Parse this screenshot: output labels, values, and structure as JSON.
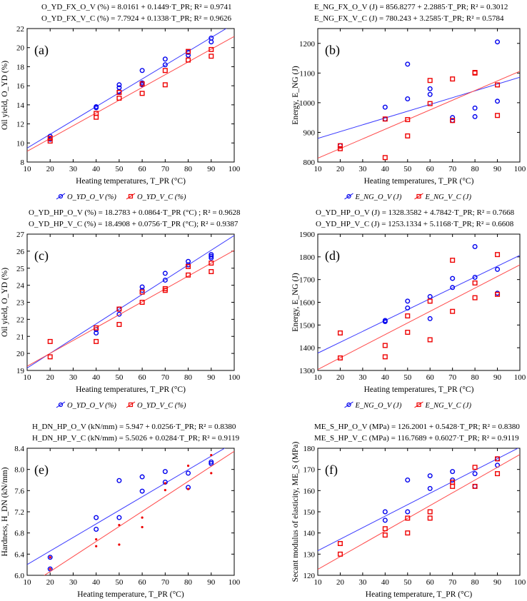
{
  "colors": {
    "blue": "#0000ee",
    "red": "#ee0000",
    "fit_blue": "#3a3aff",
    "fit_red": "#ff4a4a",
    "axis": "#000000"
  },
  "chart_data": [
    {
      "type": "scatter",
      "panel": "(a)",
      "eq1": "O_YD_FX_O_V (%) = 8.0161 + 0.1449·T_PR; R² = 0.9741",
      "eq2": "O_YD_FX_V_C (%) = 7.7924 + 0.1338·T_PR; R² = 0.9626",
      "xlabel": "Heating temperatures, T_PR (°C)",
      "ylabel": "Oil yield, O_YD (%)",
      "xlim": [
        10,
        100
      ],
      "ylim": [
        8,
        22
      ],
      "xticks": [
        10,
        20,
        30,
        40,
        50,
        60,
        70,
        80,
        90,
        100
      ],
      "yticks": [
        8,
        10,
        12,
        14,
        16,
        18,
        20,
        22
      ],
      "ytick_fmt": 0,
      "legend": [
        "O_YD_O_V (%)",
        "O_YD_V_C (%)"
      ],
      "series": [
        {
          "name": "O_V",
          "marker": "circle",
          "fit": [
            8.0161,
            0.1449
          ],
          "points": [
            [
              20,
              10.7
            ],
            [
              20,
              10.4
            ],
            [
              40,
              13.7
            ],
            [
              40,
              13.8
            ],
            [
              50,
              15.4
            ],
            [
              50,
              15.8
            ],
            [
              50,
              16.1
            ],
            [
              60,
              16.1
            ],
            [
              60,
              16.3
            ],
            [
              60,
              17.6
            ],
            [
              70,
              18.2
            ],
            [
              70,
              18.8
            ],
            [
              80,
              19.2
            ],
            [
              80,
              19.5
            ],
            [
              90,
              20.6
            ],
            [
              90,
              21.0
            ]
          ]
        },
        {
          "name": "V_C",
          "marker": "square",
          "fit": [
            7.7924,
            0.1338
          ],
          "points": [
            [
              20,
              10.2
            ],
            [
              20,
              10.5
            ],
            [
              40,
              12.7
            ],
            [
              40,
              13.1
            ],
            [
              50,
              14.7
            ],
            [
              50,
              15.3
            ],
            [
              60,
              15.2
            ],
            [
              60,
              16.2
            ],
            [
              70,
              16.1
            ],
            [
              70,
              17.6
            ],
            [
              80,
              18.7
            ],
            [
              80,
              19.6
            ],
            [
              90,
              19.1
            ],
            [
              90,
              19.8
            ]
          ]
        }
      ]
    },
    {
      "type": "scatter",
      "panel": "(b)",
      "eq1": "E_NG_FX_O_V (J) = 856.8277 + 2.2885·T_PR; R² = 0.3012",
      "eq2": "E_NG_FX_V_C (J) = 780.243 + 3.2585·T_PR; R² = 0.5784",
      "xlabel": "Heating temperatures, T_PR (°C)",
      "ylabel": "Energy, E_NG (J)",
      "xlim": [
        10,
        100
      ],
      "ylim": [
        800,
        1250
      ],
      "xticks": [
        10,
        20,
        30,
        40,
        50,
        60,
        70,
        80,
        90,
        100
      ],
      "yticks": [
        800,
        900,
        1000,
        1100,
        1200
      ],
      "ytick_fmt": 0,
      "legend": [
        "E_NG_O_V (J)",
        "E_NG_V_C (J)"
      ],
      "series": [
        {
          "name": "O_V",
          "marker": "circle",
          "fit": [
            856.8277,
            2.2885
          ],
          "points": [
            [
              20,
              855
            ],
            [
              40,
              945
            ],
            [
              40,
              985
            ],
            [
              50,
              1013
            ],
            [
              50,
              1130
            ],
            [
              60,
              1028
            ],
            [
              60,
              1047
            ],
            [
              70,
              940
            ],
            [
              70,
              950
            ],
            [
              80,
              953
            ],
            [
              80,
              982
            ],
            [
              90,
              1005
            ],
            [
              90,
              1205
            ]
          ]
        },
        {
          "name": "V_C",
          "marker": "square",
          "fit": [
            780.243,
            3.2585
          ],
          "points": [
            [
              20,
              845
            ],
            [
              20,
              855
            ],
            [
              40,
              815
            ],
            [
              40,
              945
            ],
            [
              50,
              888
            ],
            [
              50,
              943
            ],
            [
              60,
              997
            ],
            [
              60,
              1075
            ],
            [
              70,
              940
            ],
            [
              70,
              1080
            ],
            [
              80,
              1100
            ],
            [
              80,
              1102
            ],
            [
              90,
              957
            ],
            [
              90,
              1060
            ]
          ]
        }
      ]
    },
    {
      "type": "scatter",
      "panel": "(c)",
      "eq1": "O_YD_HP_O_V (%) = 18.2783 + 0.0864·T_PR (°C) ; R² = 0.9628",
      "eq2": "O_YD_HP_V_C (%) = 18.4908 + 0.0756·T_PR (°C); R² = 0.9387",
      "xlabel": "Heating temperatures, T_PR (°C)",
      "ylabel": "Oil yield, O_YD (%)",
      "xlim": [
        10,
        100
      ],
      "ylim": [
        19,
        27
      ],
      "xticks": [
        10,
        20,
        30,
        40,
        50,
        60,
        70,
        80,
        90,
        100
      ],
      "yticks": [
        19,
        20,
        21,
        22,
        23,
        24,
        25,
        26,
        27
      ],
      "ytick_fmt": 0,
      "legend": [
        "O_YD_O_V (%)",
        "O_YD_V_C (%)"
      ],
      "series": [
        {
          "name": "O_V",
          "marker": "circle",
          "fit": [
            18.2783,
            0.0864
          ],
          "points": [
            [
              40,
              21.2
            ],
            [
              40,
              21.4
            ],
            [
              50,
              22.3
            ],
            [
              50,
              22.6
            ],
            [
              60,
              23.7
            ],
            [
              60,
              23.9
            ],
            [
              70,
              24.3
            ],
            [
              70,
              24.7
            ],
            [
              80,
              25.2
            ],
            [
              80,
              25.4
            ],
            [
              90,
              25.6
            ],
            [
              90,
              25.7
            ],
            [
              90,
              25.8
            ]
          ]
        },
        {
          "name": "V_C",
          "marker": "square",
          "fit": [
            18.4908,
            0.0756
          ],
          "points": [
            [
              20,
              19.8
            ],
            [
              20,
              20.7
            ],
            [
              40,
              20.7
            ],
            [
              40,
              21.5
            ],
            [
              50,
              21.7
            ],
            [
              50,
              22.6
            ],
            [
              60,
              23.0
            ],
            [
              60,
              23.6
            ],
            [
              70,
              23.7
            ],
            [
              70,
              23.8
            ],
            [
              80,
              24.6
            ],
            [
              80,
              25.1
            ],
            [
              90,
              24.8
            ],
            [
              90,
              25.3
            ]
          ]
        }
      ]
    },
    {
      "type": "scatter",
      "panel": "(d)",
      "eq1": "O_YD_HP_O_V (J) = 1328.3582 + 4.7842·T_PR; R² = 0.7668",
      "eq2": "O_YD_HP_V_C (J) = 1253.1334 + 5.1168·T_PR; R² = 0.6608",
      "xlabel": "Heating temperatures, T_PR (°C)",
      "ylabel": "Energy, E_NG (J)",
      "xlim": [
        10,
        100
      ],
      "ylim": [
        1300,
        1900
      ],
      "xticks": [
        10,
        20,
        30,
        40,
        50,
        60,
        70,
        80,
        90,
        100
      ],
      "yticks": [
        1300,
        1400,
        1500,
        1600,
        1700,
        1800,
        1900
      ],
      "ytick_fmt": 0,
      "legend": [
        "E_NG_O_V (J)",
        "E_NG_V_C (J)"
      ],
      "series": [
        {
          "name": "O_V",
          "marker": "circle",
          "fit": [
            1328.3582,
            4.7842
          ],
          "points": [
            [
              40,
              1515
            ],
            [
              40,
              1520
            ],
            [
              50,
              1575
            ],
            [
              50,
              1605
            ],
            [
              60,
              1528
            ],
            [
              60,
              1625
            ],
            [
              70,
              1665
            ],
            [
              70,
              1705
            ],
            [
              80,
              1710
            ],
            [
              80,
              1845
            ],
            [
              90,
              1640
            ],
            [
              90,
              1745
            ]
          ]
        },
        {
          "name": "V_C",
          "marker": "square",
          "fit": [
            1253.1334,
            5.1168
          ],
          "points": [
            [
              20,
              1355
            ],
            [
              20,
              1465
            ],
            [
              40,
              1360
            ],
            [
              40,
              1410
            ],
            [
              50,
              1468
            ],
            [
              50,
              1540
            ],
            [
              60,
              1435
            ],
            [
              60,
              1605
            ],
            [
              70,
              1560
            ],
            [
              70,
              1785
            ],
            [
              80,
              1620
            ],
            [
              80,
              1685
            ],
            [
              90,
              1635
            ],
            [
              90,
              1810
            ]
          ]
        }
      ]
    },
    {
      "type": "scatter",
      "panel": "(e)",
      "eq1": "H_DN_HP_O_V (kN/mm) = 5.947 + 0.0256·T_PR; R² = 0.8380",
      "eq2": "H_DN_HP_V_C (kN/mm) = 5.5026 + 0.0284·T_PR; R² = 0.9119",
      "xlabel": "Heating temperature, T_PR (°C)",
      "ylabel": "Hardness, H_DN (kN/mm)",
      "xlim": [
        10,
        100
      ],
      "ylim": [
        6.0,
        8.4
      ],
      "xticks": [
        10,
        20,
        30,
        40,
        50,
        60,
        70,
        80,
        90,
        100
      ],
      "yticks": [
        6.0,
        6.4,
        6.8,
        7.2,
        7.6,
        8.0,
        8.4
      ],
      "ytick_fmt": 1,
      "legend": [
        "H_DN, (kN/mm), O_V",
        "H_DN, (kN/mm) V_C"
      ],
      "series": [
        {
          "name": "O_V",
          "marker": "circle",
          "fit": [
            5.947,
            0.0256
          ],
          "points": [
            [
              20,
              6.12
            ],
            [
              20,
              6.34
            ],
            [
              40,
              6.87
            ],
            [
              40,
              7.09
            ],
            [
              50,
              7.09
            ],
            [
              50,
              7.79
            ],
            [
              60,
              7.59
            ],
            [
              60,
              7.86
            ],
            [
              70,
              7.76
            ],
            [
              70,
              7.96
            ],
            [
              80,
              7.66
            ],
            [
              80,
              7.93
            ],
            [
              90,
              8.11
            ],
            [
              90,
              8.14
            ]
          ]
        },
        {
          "name": "V_C",
          "marker": "dot",
          "fit": [
            5.5026,
            0.0284
          ],
          "points": [
            [
              20,
              6.12
            ],
            [
              20,
              6.34
            ],
            [
              40,
              6.55
            ],
            [
              40,
              6.68
            ],
            [
              50,
              6.58
            ],
            [
              50,
              6.95
            ],
            [
              60,
              6.91
            ],
            [
              60,
              7.09
            ],
            [
              70,
              7.61
            ],
            [
              70,
              7.74
            ],
            [
              80,
              7.63
            ],
            [
              80,
              8.07
            ],
            [
              90,
              7.93
            ],
            [
              90,
              8.27
            ]
          ]
        }
      ]
    },
    {
      "type": "scatter",
      "panel": "(f)",
      "eq1": "ME_S_HP_O_V (MPa) = 126.2001 + 0.5428·T_PR; R² = 0.8380",
      "eq2": "ME_S_HP_V_C (MPa) = 116.7689 + 0.6027·T_PR; R² = 0.9119",
      "xlabel": "Heating temperature, T_PR (°C)",
      "ylabel": "Secant modulus of elasticity, ME_S (MPa)",
      "xlim": [
        10,
        100
      ],
      "ylim": [
        120,
        180
      ],
      "xticks": [
        10,
        20,
        30,
        40,
        50,
        60,
        70,
        80,
        90,
        100
      ],
      "yticks": [
        120,
        130,
        140,
        150,
        160,
        170,
        180
      ],
      "ytick_fmt": 0,
      "legend": [
        "ME_S (MPa)_O_V",
        "ME_S (MPa)_V_C"
      ],
      "series": [
        {
          "name": "O_V",
          "marker": "circle",
          "fit": [
            126.2001,
            0.5428
          ],
          "points": [
            [
              40,
              146
            ],
            [
              40,
              150
            ],
            [
              50,
              150
            ],
            [
              50,
              165
            ],
            [
              60,
              161
            ],
            [
              60,
              167
            ],
            [
              70,
              165
            ],
            [
              70,
              169
            ],
            [
              80,
              162
            ],
            [
              80,
              168
            ],
            [
              90,
              172
            ],
            [
              90,
              175
            ]
          ]
        },
        {
          "name": "V_C",
          "marker": "square",
          "fit": [
            116.7689,
            0.6027
          ],
          "points": [
            [
              20,
              130
            ],
            [
              20,
              135
            ],
            [
              40,
              139
            ],
            [
              40,
              142
            ],
            [
              50,
              140
            ],
            [
              50,
              147
            ],
            [
              60,
              147
            ],
            [
              60,
              150
            ],
            [
              70,
              162
            ],
            [
              70,
              164
            ],
            [
              80,
              162
            ],
            [
              80,
              171
            ],
            [
              90,
              168
            ],
            [
              90,
              175
            ]
          ]
        }
      ]
    }
  ]
}
